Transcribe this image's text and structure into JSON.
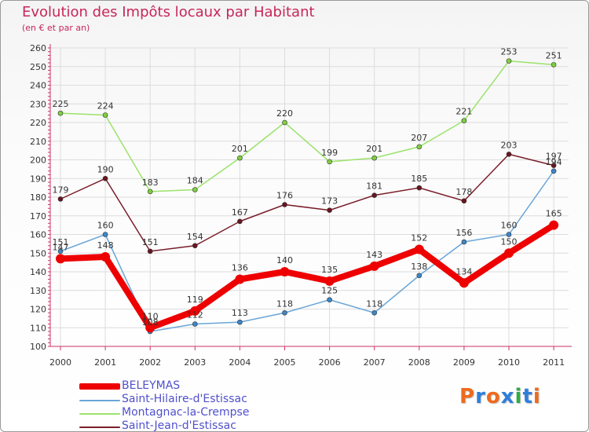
{
  "title": "Evolution des Impôts locaux par Habitant",
  "subtitle": "(en € et par an)",
  "logo": {
    "text": "Proxiti",
    "colors": [
      "#ee6a1c",
      "#2f7fd8",
      "#ee6a1c",
      "#2f7fd8",
      "#33aa44",
      "#2f7fd8",
      "#ee6a1c"
    ]
  },
  "chart_data": {
    "type": "line",
    "title": "Evolution des Impôts locaux par Habitant",
    "subtitle": "(en € et par an)",
    "xlabel": "",
    "ylabel": "",
    "categories": [
      "2000",
      "2001",
      "2002",
      "2003",
      "2004",
      "2005",
      "2006",
      "2007",
      "2008",
      "2009",
      "2010",
      "2011"
    ],
    "ylim": [
      100,
      260
    ],
    "yticks": [
      100,
      110,
      120,
      130,
      140,
      150,
      160,
      170,
      180,
      190,
      200,
      210,
      220,
      230,
      240,
      250,
      260
    ],
    "grid": true,
    "legend_position": "bottom-left",
    "series": [
      {
        "name": "Montagnac-la-Crempse",
        "color": "#9be36a",
        "marker": "#7fcf3e",
        "emphasis": false,
        "values": [
          225,
          224,
          183,
          184,
          201,
          220,
          199,
          201,
          207,
          221,
          253,
          251
        ]
      },
      {
        "name": "Saint-Jean-d'Estissac",
        "color": "#7a1f2b",
        "marker": "#6a1520",
        "emphasis": false,
        "values": [
          179,
          190,
          151,
          154,
          167,
          176,
          173,
          181,
          185,
          178,
          203,
          197
        ]
      },
      {
        "name": "Saint-Hilaire-d'Estissac",
        "color": "#6aa6d8",
        "marker": "#3d86c6",
        "emphasis": false,
        "values": [
          151,
          160,
          108,
          112,
          113,
          118,
          125,
          118,
          138,
          156,
          160,
          194
        ]
      },
      {
        "name": "BELEYMAS",
        "color": "#ee0000",
        "marker": "#ee0000",
        "emphasis": true,
        "values": [
          147,
          148,
          110,
          119,
          136,
          140,
          135,
          143,
          152,
          134,
          150,
          165
        ]
      }
    ],
    "legend_order": [
      "BELEYMAS",
      "Saint-Hilaire-d'Estissac",
      "Montagnac-la-Crempse",
      "Saint-Jean-d'Estissac"
    ]
  }
}
